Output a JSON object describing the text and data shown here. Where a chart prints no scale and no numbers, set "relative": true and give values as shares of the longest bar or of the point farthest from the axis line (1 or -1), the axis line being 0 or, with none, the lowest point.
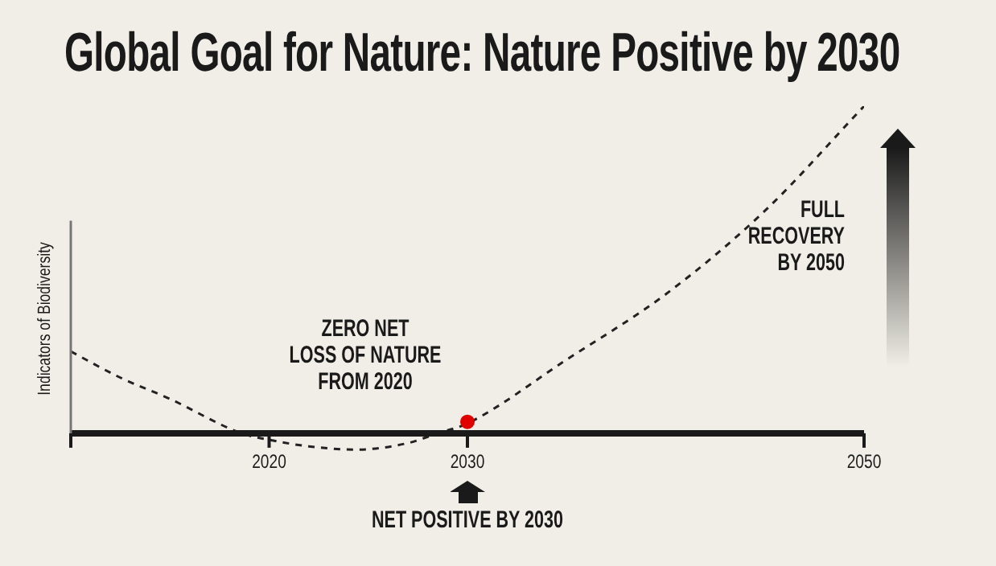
{
  "chart_data": {
    "type": "line",
    "title": "Global Goal for Nature: Nature Positive by 2030",
    "ylabel": "Indicators of Biodiversity",
    "relative": true,
    "xlim": [
      2010,
      2050
    ],
    "xticks": [
      {
        "value": 2010,
        "label": null
      },
      2020,
      2030,
      2050
    ],
    "legend": false,
    "series": [
      {
        "color": "#222222",
        "line_style": "dashed",
        "marker": "none",
        "x": [
          2010,
          2012.5,
          2015,
          2018.6,
          2020,
          2022,
          2024.4,
          2027,
          2028.5,
          2030,
          2035,
          2040,
          2045,
          2050
        ],
        "values": [
          0.25,
          0.17,
          0.105,
          0,
          -0.02,
          -0.04,
          -0.05,
          -0.03,
          0,
          0.03,
          0.225,
          0.425,
          0.68,
          1
        ]
      },
      {
        "type": "scatter",
        "color": "#e00000",
        "marker": "circle",
        "x": [
          2030
        ],
        "values": [
          0.035
        ]
      }
    ],
    "annotations": [
      "ZERO NET\nLOSS OF NATURE\nFROM 2020",
      "FULL\nRECOVERY\nBY 2050",
      "NET POSITIVE BY 2030"
    ]
  }
}
